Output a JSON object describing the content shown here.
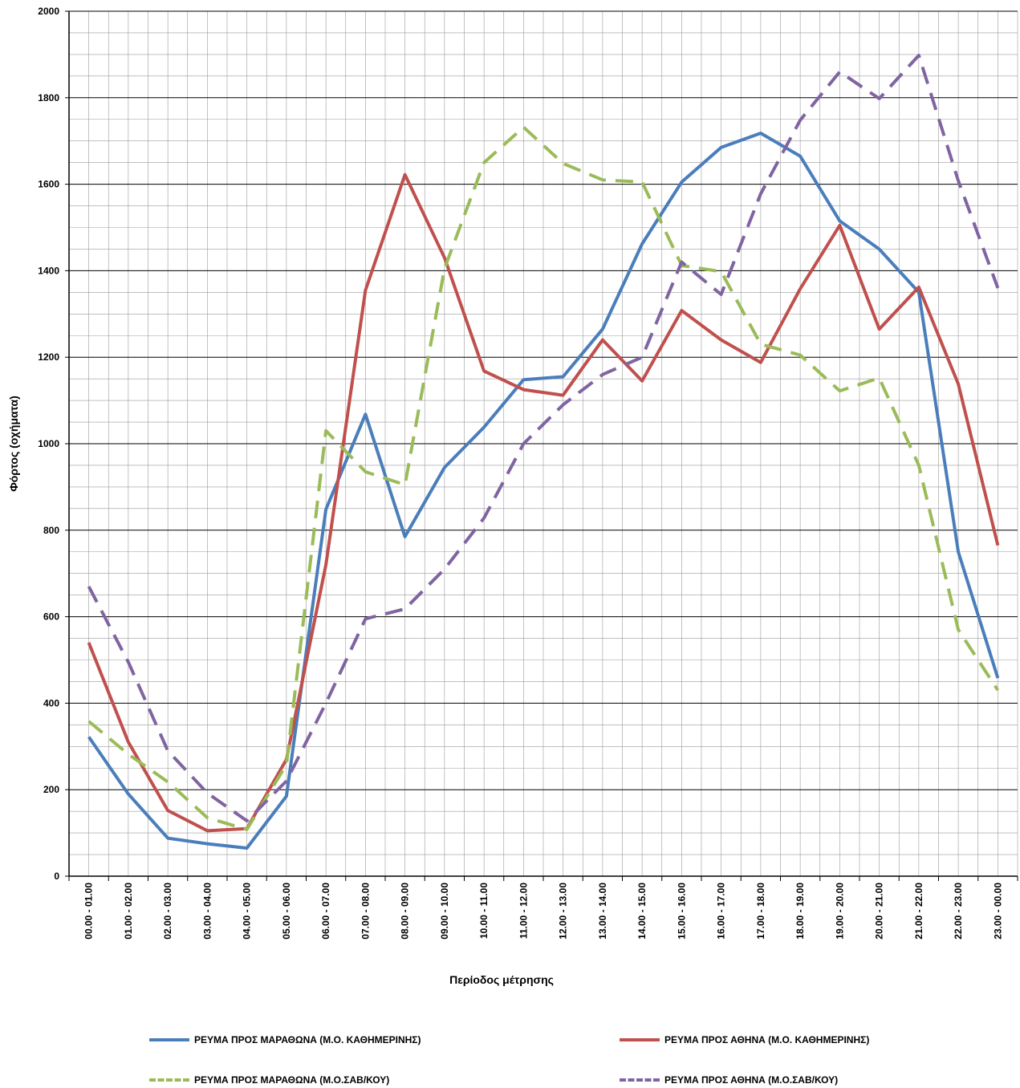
{
  "chart_data": {
    "type": "line",
    "title": "",
    "xlabel": "Περίοδος μέτρησης",
    "ylabel": "Φόρτος (οχήματα)",
    "ylim": [
      0,
      2000
    ],
    "yticks": [
      "0",
      "200",
      "400",
      "600",
      "800",
      "1000",
      "1200",
      "1400",
      "1600",
      "1800",
      "2000"
    ],
    "grid": true,
    "legend_position": "bottom",
    "categories": [
      "00.00 - 01.00",
      "01.00 - 02.00",
      "02.00 - 03.00",
      "03.00 - 04.00",
      "04.00 - 05.00",
      "05.00 - 06.00",
      "06.00 - 07.00",
      "07.00 - 08.00",
      "08.00 - 09.00",
      "09.00 - 10.00",
      "10.00 - 11.00",
      "11.00 - 12.00",
      "12.00 - 13.00",
      "13.00 - 14.00",
      "14.00 - 15.00",
      "15.00 - 16.00",
      "16.00 - 17.00",
      "17.00 - 18.00",
      "18.00 - 19.00",
      "19.00 - 20.00",
      "20.00 - 21.00",
      "21.00 - 22.00",
      "22.00 - 23.00",
      "23.00 - 00.00"
    ],
    "series": [
      {
        "name": "ΡΕΥΜΑ  ΠΡΟΣ ΜΑΡΑΘΩΝΑ (Μ.Ο. ΚΑΘΗΜΕΡΙΝΗΣ)",
        "color": "#4a7ebb",
        "dashed": false,
        "values": [
          322,
          190,
          88,
          75,
          65,
          185,
          848,
          1068,
          785,
          945,
          1038,
          1148,
          1155,
          1265,
          1462,
          1605,
          1685,
          1718,
          1665,
          1515,
          1450,
          1350,
          750,
          458
        ]
      },
      {
        "name": "ΡΕΥΜΑ ΠΡΟΣ ΑΘΗΝΑ (Μ.Ο. ΚΑΘΗΜΕΡΙΝΗΣ)",
        "color": "#c0504d",
        "dashed": false,
        "values": [
          540,
          310,
          152,
          105,
          110,
          270,
          720,
          1355,
          1622,
          1430,
          1168,
          1125,
          1112,
          1240,
          1145,
          1308,
          1240,
          1188,
          1358,
          1505,
          1265,
          1362,
          1138,
          765
        ]
      },
      {
        "name": "ΡΕΥΜΑ ΠΡΟΣ ΜΑΡΑΘΩΝΑ (Μ.Ο.ΣΑΒ/ΚΟΥ)",
        "color": "#9bbb59",
        "dashed": true,
        "values": [
          358,
          282,
          218,
          135,
          108,
          258,
          1030,
          935,
          905,
          1405,
          1650,
          1732,
          1648,
          1610,
          1605,
          1412,
          1398,
          1230,
          1205,
          1122,
          1152,
          950,
          570,
          430
        ]
      },
      {
        "name": "ΡΕΥΜΑ ΠΡΟΣ ΑΘΗΝΑ (Μ.Ο.ΣΑΒ/ΚΟΥ)",
        "color": "#8064a2",
        "dashed": true,
        "values": [
          670,
          495,
          290,
          192,
          128,
          220,
          400,
          595,
          618,
          710,
          828,
          1000,
          1090,
          1160,
          1200,
          1420,
          1345,
          1578,
          1748,
          1860,
          1798,
          1898,
          1608,
          1360
        ]
      }
    ]
  }
}
